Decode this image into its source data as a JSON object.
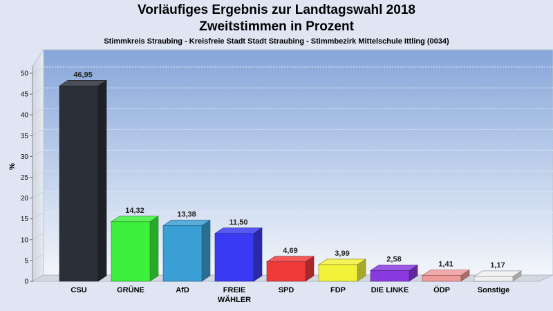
{
  "chart_data": {
    "type": "bar",
    "title": "Vorläufiges Ergebnis zur Landtagswahl 2018",
    "subtitle": "Zweitstimmen in Prozent",
    "subtitle2": "Stimmkreis Straubing - Kreisfreie Stadt Stadt Straubing - Stimmbezirk Mittelschule Ittling (0034)",
    "ylabel": "%",
    "xlabel": "",
    "ylim": [
      0,
      50
    ],
    "yticks": [
      0,
      5,
      10,
      15,
      20,
      25,
      30,
      35,
      40,
      45,
      50
    ],
    "grid": true,
    "categories": [
      "CSU",
      "GRÜNE",
      "AfD",
      "FREIE WÄHLER",
      "SPD",
      "FDP",
      "DIE LINKE",
      "ÖDP",
      "Sonstige"
    ],
    "values": [
      46.95,
      14.32,
      13.38,
      11.5,
      4.69,
      3.99,
      2.58,
      1.41,
      1.17
    ],
    "value_labels": [
      "46,95",
      "14,32",
      "13,38",
      "11,50",
      "4,69",
      "3,99",
      "2,58",
      "1,41",
      "1,17"
    ],
    "colors": [
      "#2b2f38",
      "#3cf03c",
      "#3a9fd4",
      "#3a3af2",
      "#f03a3a",
      "#f2f23a",
      "#8a3ae0",
      "#f09a9a",
      "#f0f0f0"
    ]
  }
}
